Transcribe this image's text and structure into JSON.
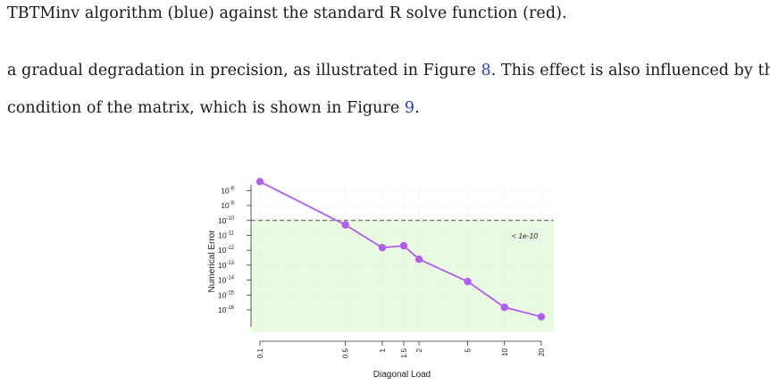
{
  "text": {
    "line1": "TBTMinv algorithm (blue) against the standard R solve function (red).",
    "line2_a": "a gradual degradation in precision, as illustrated in Figure ",
    "line2_ref": "8",
    "line2_b": ". This effect is also influenced by the",
    "line3_a": "condition of the matrix, which is shown in Figure ",
    "line3_ref": "9",
    "line3_b": "."
  },
  "chart_data": {
    "type": "line",
    "xlabel": "Diagonal Load",
    "ylabel": "Numerical Error",
    "x_scale": "log",
    "y_scale": "log",
    "x_ticks": [
      "0.1",
      "0.5",
      "1",
      "1.5",
      "2",
      "5",
      "10",
      "20"
    ],
    "y_ticks": [
      {
        "base": "10",
        "exp": "-8"
      },
      {
        "base": "10",
        "exp": "-9"
      },
      {
        "base": "10",
        "exp": "-10"
      },
      {
        "base": "10",
        "exp": "-11"
      },
      {
        "base": "10",
        "exp": "-12"
      },
      {
        "base": "10",
        "exp": "-13"
      },
      {
        "base": "10",
        "exp": "-14"
      },
      {
        "base": "10",
        "exp": "-15"
      },
      {
        "base": "10",
        "exp": "-16"
      }
    ],
    "series": [
      {
        "x": [
          0.1,
          0.5,
          1,
          1.5,
          2,
          5,
          10,
          20
        ],
        "y": [
          4e-08,
          5e-11,
          1.5e-12,
          2e-12,
          2.5e-13,
          8e-15,
          1.5e-16,
          3.5e-17
        ],
        "color": "#b25cf0"
      }
    ],
    "threshold": {
      "y": 1e-10,
      "label": "< 1e-10",
      "style": "dashed",
      "color": "#555555"
    },
    "shaded_region": {
      "below": 1e-10,
      "color": "#e8fbe2"
    },
    "grid": true,
    "ylim_log10": [
      -17.5,
      -7.5
    ]
  }
}
